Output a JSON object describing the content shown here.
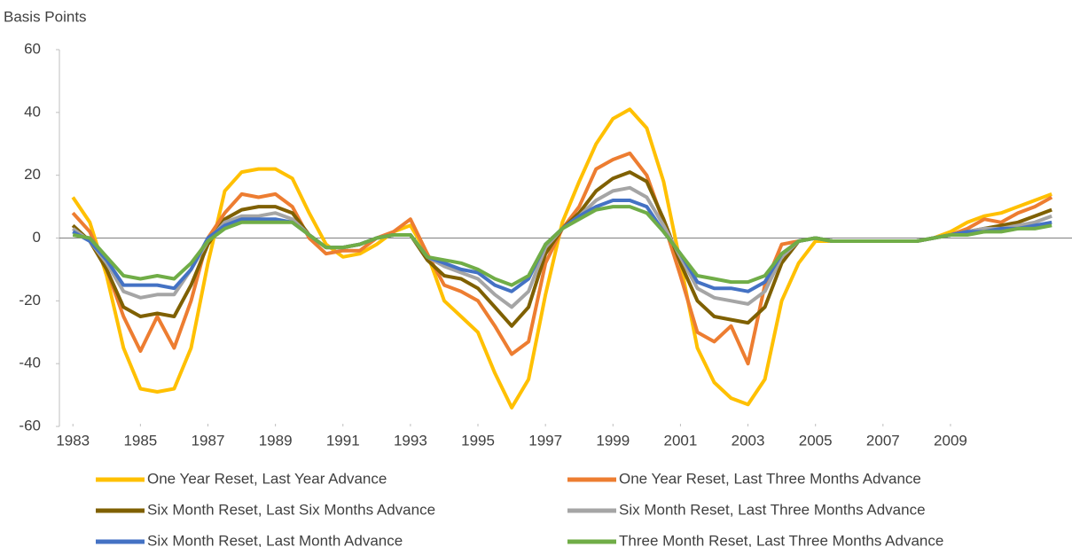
{
  "chart_data": {
    "type": "line",
    "y_label": "Basis Points",
    "x": [
      1983,
      1983.5,
      1984,
      1984.5,
      1985,
      1985.5,
      1986,
      1986.5,
      1987,
      1987.5,
      1988,
      1988.5,
      1989,
      1989.5,
      1990,
      1990.5,
      1991,
      1991.5,
      1992,
      1992.5,
      1993,
      1993.5,
      1994,
      1994.5,
      1995,
      1995.5,
      1996,
      1996.5,
      1997,
      1997.5,
      1998,
      1998.5,
      1999,
      1999.5,
      2000,
      2000.5,
      2001,
      2001.5,
      2002,
      2002.5,
      2003,
      2003.5,
      2004,
      2004.5,
      2005,
      2005.5,
      2006,
      2006.5,
      2007,
      2007.5,
      2008,
      2008.5,
      2009,
      2009.5,
      2010,
      2010.5,
      2011,
      2011.5,
      2012
    ],
    "xlim": [
      1982.6,
      2012.6
    ],
    "xticks": [
      1983,
      1985,
      1987,
      1989,
      1991,
      1993,
      1995,
      1997,
      1999,
      2001,
      2003,
      2005,
      2007,
      2009
    ],
    "ylim": [
      -60,
      60
    ],
    "yticks": [
      -60,
      -40,
      -20,
      0,
      20,
      40,
      60
    ],
    "legend": "bottom",
    "series": [
      {
        "name": "One Year Reset, Last Year Advance",
        "color": "#FFC000",
        "values": [
          13,
          5,
          -12,
          -35,
          -48,
          -49,
          -48,
          -35,
          -8,
          15,
          21,
          22,
          22,
          19,
          8,
          -2,
          -6,
          -5,
          -2,
          2,
          4,
          -5,
          -20,
          -25,
          -30,
          -43,
          -54,
          -45,
          -18,
          5,
          18,
          30,
          38,
          41,
          35,
          18,
          -8,
          -35,
          -46,
          -51,
          -53,
          -45,
          -20,
          -8,
          -1,
          -1,
          -1,
          -1,
          -1,
          -1,
          -1,
          0,
          2,
          5,
          7,
          8,
          10,
          12,
          14
        ]
      },
      {
        "name": "One Year Reset, Last Three Months Advance",
        "color": "#ED7D31",
        "values": [
          8,
          2,
          -10,
          -25,
          -36,
          -25,
          -35,
          -20,
          0,
          8,
          14,
          13,
          14,
          10,
          0,
          -5,
          -4,
          -4,
          0,
          2,
          6,
          -5,
          -15,
          -17,
          -20,
          -28,
          -37,
          -33,
          -8,
          3,
          10,
          22,
          25,
          27,
          20,
          5,
          -12,
          -30,
          -33,
          -28,
          -40,
          -15,
          -2,
          -1,
          0,
          -1,
          -1,
          -1,
          -1,
          -1,
          -1,
          0,
          1,
          3,
          6,
          5,
          8,
          10,
          13
        ]
      },
      {
        "name": "Six Month Reset, Last Six Months Advance",
        "color": "#7F6000",
        "values": [
          4,
          -1,
          -10,
          -22,
          -25,
          -24,
          -25,
          -15,
          -2,
          6,
          9,
          10,
          10,
          8,
          1,
          -3,
          -3,
          -2,
          0,
          1,
          1,
          -7,
          -12,
          -13,
          -16,
          -22,
          -28,
          -22,
          -5,
          3,
          8,
          15,
          19,
          21,
          18,
          6,
          -8,
          -20,
          -25,
          -26,
          -27,
          -22,
          -8,
          -1,
          0,
          -1,
          -1,
          -1,
          -1,
          -1,
          -1,
          0,
          1,
          2,
          3,
          4,
          5,
          7,
          9
        ]
      },
      {
        "name": "Six Month Reset, Last Three Months Advance",
        "color": "#A5A5A5",
        "values": [
          3,
          -1,
          -8,
          -17,
          -19,
          -18,
          -18,
          -10,
          -1,
          5,
          7,
          7,
          8,
          6,
          1,
          -3,
          -3,
          -2,
          0,
          1,
          1,
          -6,
          -9,
          -11,
          -13,
          -18,
          -22,
          -17,
          -3,
          3,
          7,
          12,
          15,
          16,
          13,
          4,
          -6,
          -16,
          -19,
          -20,
          -21,
          -17,
          -6,
          -1,
          0,
          -1,
          -1,
          -1,
          -1,
          -1,
          -1,
          0,
          1,
          2,
          3,
          3,
          4,
          5,
          7
        ]
      },
      {
        "name": "Six Month Reset, Last Month Advance",
        "color": "#4472C4",
        "values": [
          2,
          -1,
          -7,
          -15,
          -15,
          -15,
          -16,
          -10,
          0,
          4,
          6,
          6,
          6,
          5,
          1,
          -3,
          -3,
          -2,
          0,
          1,
          1,
          -6,
          -8,
          -10,
          -11,
          -15,
          -17,
          -13,
          -2,
          3,
          7,
          10,
          12,
          12,
          10,
          2,
          -5,
          -14,
          -16,
          -16,
          -17,
          -14,
          -5,
          -1,
          0,
          -1,
          -1,
          -1,
          -1,
          -1,
          -1,
          0,
          1,
          2,
          2,
          3,
          3,
          4,
          5
        ]
      },
      {
        "name": "Three Month Reset, Last Three Months Advance",
        "color": "#70AD47",
        "values": [
          1,
          0,
          -6,
          -12,
          -13,
          -12,
          -13,
          -8,
          -1,
          3,
          5,
          5,
          5,
          5,
          1,
          -3,
          -3,
          -2,
          0,
          1,
          1,
          -6,
          -7,
          -8,
          -10,
          -13,
          -15,
          -12,
          -2,
          3,
          6,
          9,
          10,
          10,
          8,
          2,
          -5,
          -12,
          -13,
          -14,
          -14,
          -12,
          -5,
          -1,
          0,
          -1,
          -1,
          -1,
          -1,
          -1,
          -1,
          0,
          1,
          1,
          2,
          2,
          3,
          3,
          4
        ]
      }
    ]
  }
}
